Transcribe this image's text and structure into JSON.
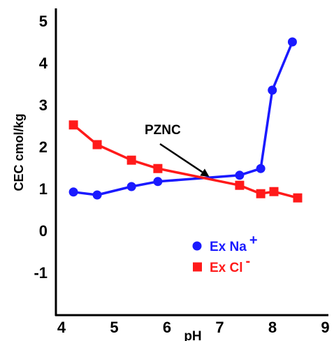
{
  "chart_data": {
    "type": "line",
    "title": "",
    "xlabel": "pH",
    "ylabel": "CEC cmol/kg",
    "xlim": [
      4,
      9
    ],
    "ylim": [
      -2,
      5
    ],
    "x_ticks": [
      "4",
      "5",
      "6",
      "7",
      "8",
      "9"
    ],
    "y_ticks": [
      "5",
      "4",
      "3",
      "2",
      "1",
      "0",
      "-1"
    ],
    "grid": false,
    "legend_position": "lower-right",
    "annotation": {
      "text": "PZNC",
      "points_to": {
        "x": 6.75,
        "y": 1.25
      }
    },
    "series": [
      {
        "name": "Ex Na",
        "superscript": "+",
        "color": "#1a1aff",
        "marker": "circle",
        "x": [
          4.2,
          4.65,
          5.3,
          5.8,
          7.35,
          7.75,
          7.97,
          8.35
        ],
        "y": [
          0.92,
          0.85,
          1.05,
          1.17,
          1.32,
          1.48,
          3.35,
          4.5
        ]
      },
      {
        "name": "Ex Cl",
        "superscript": "-",
        "color": "#ff1a1a",
        "marker": "square",
        "x": [
          4.2,
          4.65,
          5.3,
          5.8,
          7.35,
          7.75,
          8.0,
          8.45
        ],
        "y": [
          2.52,
          2.05,
          1.68,
          1.48,
          1.08,
          0.88,
          0.93,
          0.78
        ]
      }
    ]
  }
}
